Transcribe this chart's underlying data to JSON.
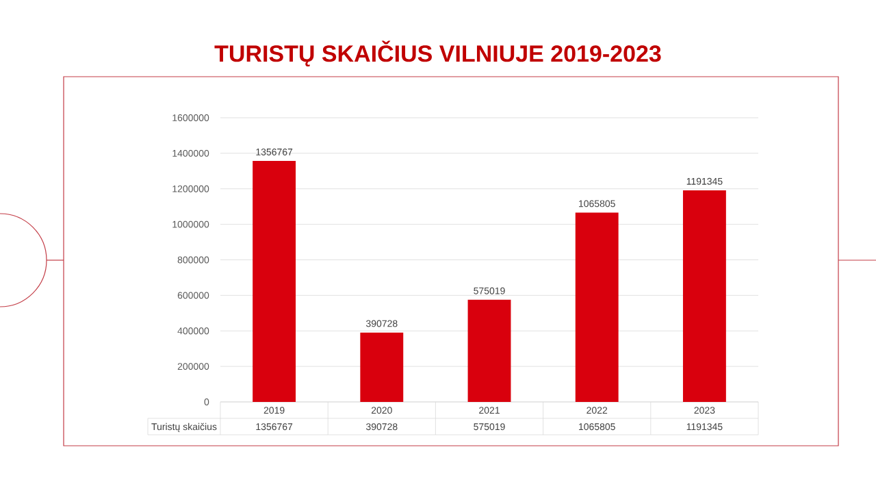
{
  "chart_data": {
    "type": "bar",
    "title": "TURISTŲ SKAIČIUS VILNIUJE 2019-2023",
    "categories": [
      "2019",
      "2020",
      "2021",
      "2022",
      "2023"
    ],
    "series": [
      {
        "name": "Turistų skaičius",
        "color": "#d9000d",
        "values": [
          1356767,
          390728,
          575019,
          1065805,
          1191345
        ]
      }
    ],
    "ylim": [
      0,
      1600000
    ],
    "yticks": [
      0,
      200000,
      400000,
      600000,
      800000,
      1000000,
      1200000,
      1400000,
      1600000
    ],
    "grid": "y",
    "data_labels": true,
    "annotations": [
      "1356767",
      "390728",
      "575019",
      "1065805",
      "1191345"
    ]
  }
}
